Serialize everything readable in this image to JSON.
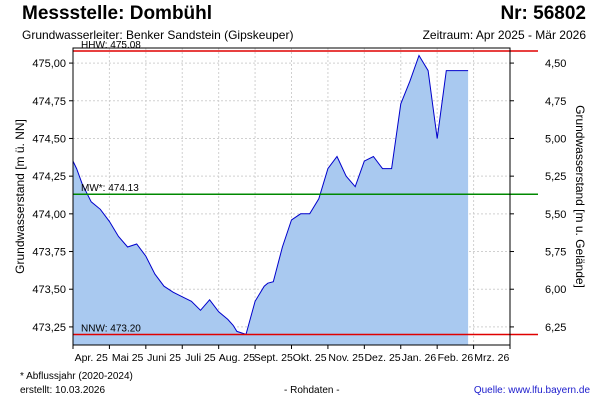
{
  "header": {
    "title": "Messstelle: Dombühl",
    "nr": "Nr: 56802",
    "aquifer": "Grundwasserleiter:   Benker Sandstein (Gipskeuper)",
    "period": "Zeitraum: Apr 2025 - Mär 2026"
  },
  "footer": {
    "footnote": "* Abflussjahr (2020-2024)",
    "created": "erstellt:  10.03.2026",
    "rawdata": "- Rohdaten -",
    "source": "Quelle:  www.lfu.bayern.de"
  },
  "colors": {
    "area_fill": "#a9c9f0",
    "series_line": "#0000cc",
    "ref_max": "#e00000",
    "ref_min": "#e00000",
    "ref_mean": "#008800",
    "grid": "#d0d0d0",
    "axis": "#000000"
  },
  "chart_data": {
    "type": "area",
    "ylabel": "Grundwasserstand [m ü. NN]",
    "y2label": "Grundwasserstand [m u. Gelände]",
    "ylim": [
      473.13,
      475.1
    ],
    "yticks": [
      473.25,
      473.5,
      473.75,
      474.0,
      474.25,
      474.5,
      474.75,
      475.0
    ],
    "ytick_labels": [
      "473,25",
      "473,50",
      "473,75",
      "474,00",
      "474,25",
      "474,50",
      "474,75",
      "475,00"
    ],
    "y2ticks": [
      6.25,
      6.0,
      5.75,
      5.5,
      5.25,
      5.0,
      4.75,
      4.5
    ],
    "y2tick_labels": [
      "6,25",
      "6,00",
      "5,75",
      "5,50",
      "5,25",
      "5,00",
      "4,75",
      "4,50"
    ],
    "y2_reference": 479.5,
    "xlim": [
      0,
      12
    ],
    "xtick_labels": [
      "Apr. 25",
      "Mai 25",
      "Juni 25",
      "Juli 25",
      "Aug. 25",
      "Sept. 25",
      "Okt. 25",
      "Nov. 25",
      "Dez. 25",
      "Jan. 26",
      "Feb. 26",
      "Mrz. 26"
    ],
    "grid": true,
    "reference_lines": [
      {
        "label": "HHW: 475.08",
        "value": 475.08,
        "color": "#e00000"
      },
      {
        "label": "MW*: 474.13",
        "value": 474.13,
        "color": "#008800"
      },
      {
        "label": "NNW: 473.20",
        "value": 473.2,
        "color": "#e00000"
      }
    ],
    "series": [
      {
        "x": [
          0.0,
          0.1,
          0.25,
          0.5,
          0.75,
          1.0,
          1.25,
          1.5,
          1.75,
          2.0,
          2.25,
          2.5,
          2.75,
          3.0,
          3.25,
          3.5,
          3.75,
          4.0,
          4.25,
          4.4,
          4.5,
          4.75,
          5.0,
          5.25,
          5.35,
          5.5,
          5.75,
          6.0,
          6.25,
          6.5,
          6.75,
          7.0,
          7.25,
          7.5,
          7.75,
          8.0,
          8.25,
          8.5,
          8.75,
          9.0,
          9.25,
          9.5,
          9.75,
          10.0,
          10.25,
          10.5,
          10.65,
          10.85
        ],
        "y": [
          474.35,
          474.3,
          474.2,
          474.08,
          474.03,
          473.95,
          473.85,
          473.78,
          473.8,
          473.72,
          473.6,
          473.52,
          473.48,
          473.45,
          473.42,
          473.36,
          473.43,
          473.35,
          473.3,
          473.26,
          473.22,
          473.2,
          473.42,
          473.52,
          473.54,
          473.55,
          473.78,
          473.96,
          474.0,
          474.0,
          474.1,
          474.3,
          474.38,
          474.25,
          474.18,
          474.35,
          474.38,
          474.3,
          474.3,
          474.73,
          474.88,
          475.05,
          474.95,
          474.5,
          474.95,
          474.95,
          474.95,
          474.95
        ]
      }
    ]
  }
}
